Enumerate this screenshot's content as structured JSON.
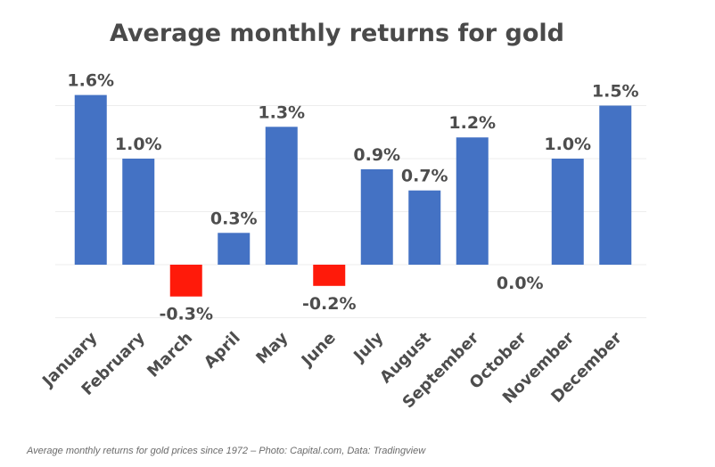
{
  "chart_data": {
    "type": "bar",
    "title": "Average monthly returns for gold",
    "categories": [
      "January",
      "February",
      "March",
      "April",
      "May",
      "June",
      "July",
      "August",
      "September",
      "October",
      "November",
      "December"
    ],
    "values": [
      1.6,
      1.0,
      -0.3,
      0.3,
      1.3,
      -0.2,
      0.9,
      0.7,
      1.2,
      0.0,
      1.0,
      1.5
    ],
    "value_labels": [
      "1.6%",
      "1.0%",
      "-0.3%",
      "0.3%",
      "1.3%",
      "-0.2%",
      "0.9%",
      "0.7%",
      "1.2%",
      "0.0%",
      "1.0%",
      "1.5%"
    ],
    "ylim": [
      -0.5,
      1.6
    ],
    "grid": true,
    "colors": {
      "positive": "#4472c4",
      "negative": "#ff1a0a"
    }
  },
  "caption": "Average monthly returns for gold prices since 1972 – Photo: Capital.com, Data: Tradingview"
}
